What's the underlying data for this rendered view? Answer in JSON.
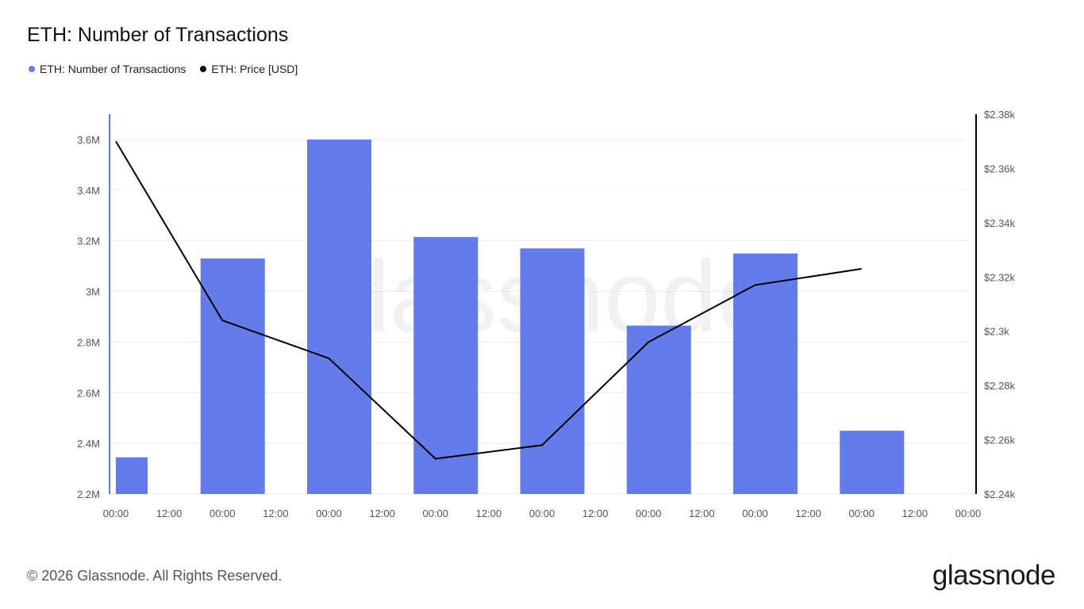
{
  "header": {
    "title": "ETH: Number of Transactions"
  },
  "legend": [
    {
      "label": "ETH: Number of Transactions",
      "color": "#647ceb"
    },
    {
      "label": "ETH: Price [USD]",
      "color": "#000000"
    }
  ],
  "footer": {
    "copyright": "© 2026 Glassnode. All Rights Reserved.",
    "logo": "glassnode"
  },
  "watermark": "glassnode",
  "chart_data": {
    "type": "bar",
    "title": "ETH: Number of Transactions",
    "x_ticks": [
      "00:00",
      "12:00",
      "00:00",
      "12:00",
      "00:00",
      "12:00",
      "00:00",
      "12:00",
      "00:00",
      "12:00",
      "00:00",
      "12:00",
      "00:00",
      "12:00",
      "00:00",
      "12:00",
      "00:00"
    ],
    "left_axis": {
      "min": 2200000,
      "max": 3700000,
      "ticks": [
        2200000,
        2400000,
        2600000,
        2800000,
        3000000,
        3200000,
        3400000,
        3600000
      ],
      "tick_labels": [
        "2.2M",
        "2.4M",
        "2.6M",
        "2.8M",
        "3M",
        "3.2M",
        "3.4M",
        "3.6M"
      ]
    },
    "right_axis": {
      "min": 2240,
      "max": 2380,
      "ticks": [
        2240,
        2260,
        2280,
        2300,
        2320,
        2340,
        2360,
        2380
      ],
      "tick_labels": [
        "$2.24k",
        "$2.26k",
        "$2.28k",
        "$2.3k",
        "$2.32k",
        "$2.34k",
        "$2.36k",
        "$2.38k"
      ]
    },
    "grid": true,
    "series": [
      {
        "name": "ETH: Number of Transactions",
        "type": "bar",
        "axis": "left",
        "color": "#647ceb",
        "x": [
          0,
          1,
          2,
          3,
          4,
          5,
          6,
          7
        ],
        "values": [
          2345000,
          3130000,
          3600000,
          3215000,
          3170000,
          2865000,
          3150000,
          2450000
        ]
      },
      {
        "name": "ETH: Price [USD]",
        "type": "line",
        "axis": "right",
        "color": "#000000",
        "x": [
          0,
          1,
          2,
          3,
          4,
          5,
          6,
          7
        ],
        "values": [
          2370,
          2304,
          2290,
          2253,
          2258,
          2296,
          2317,
          2323
        ]
      }
    ]
  }
}
